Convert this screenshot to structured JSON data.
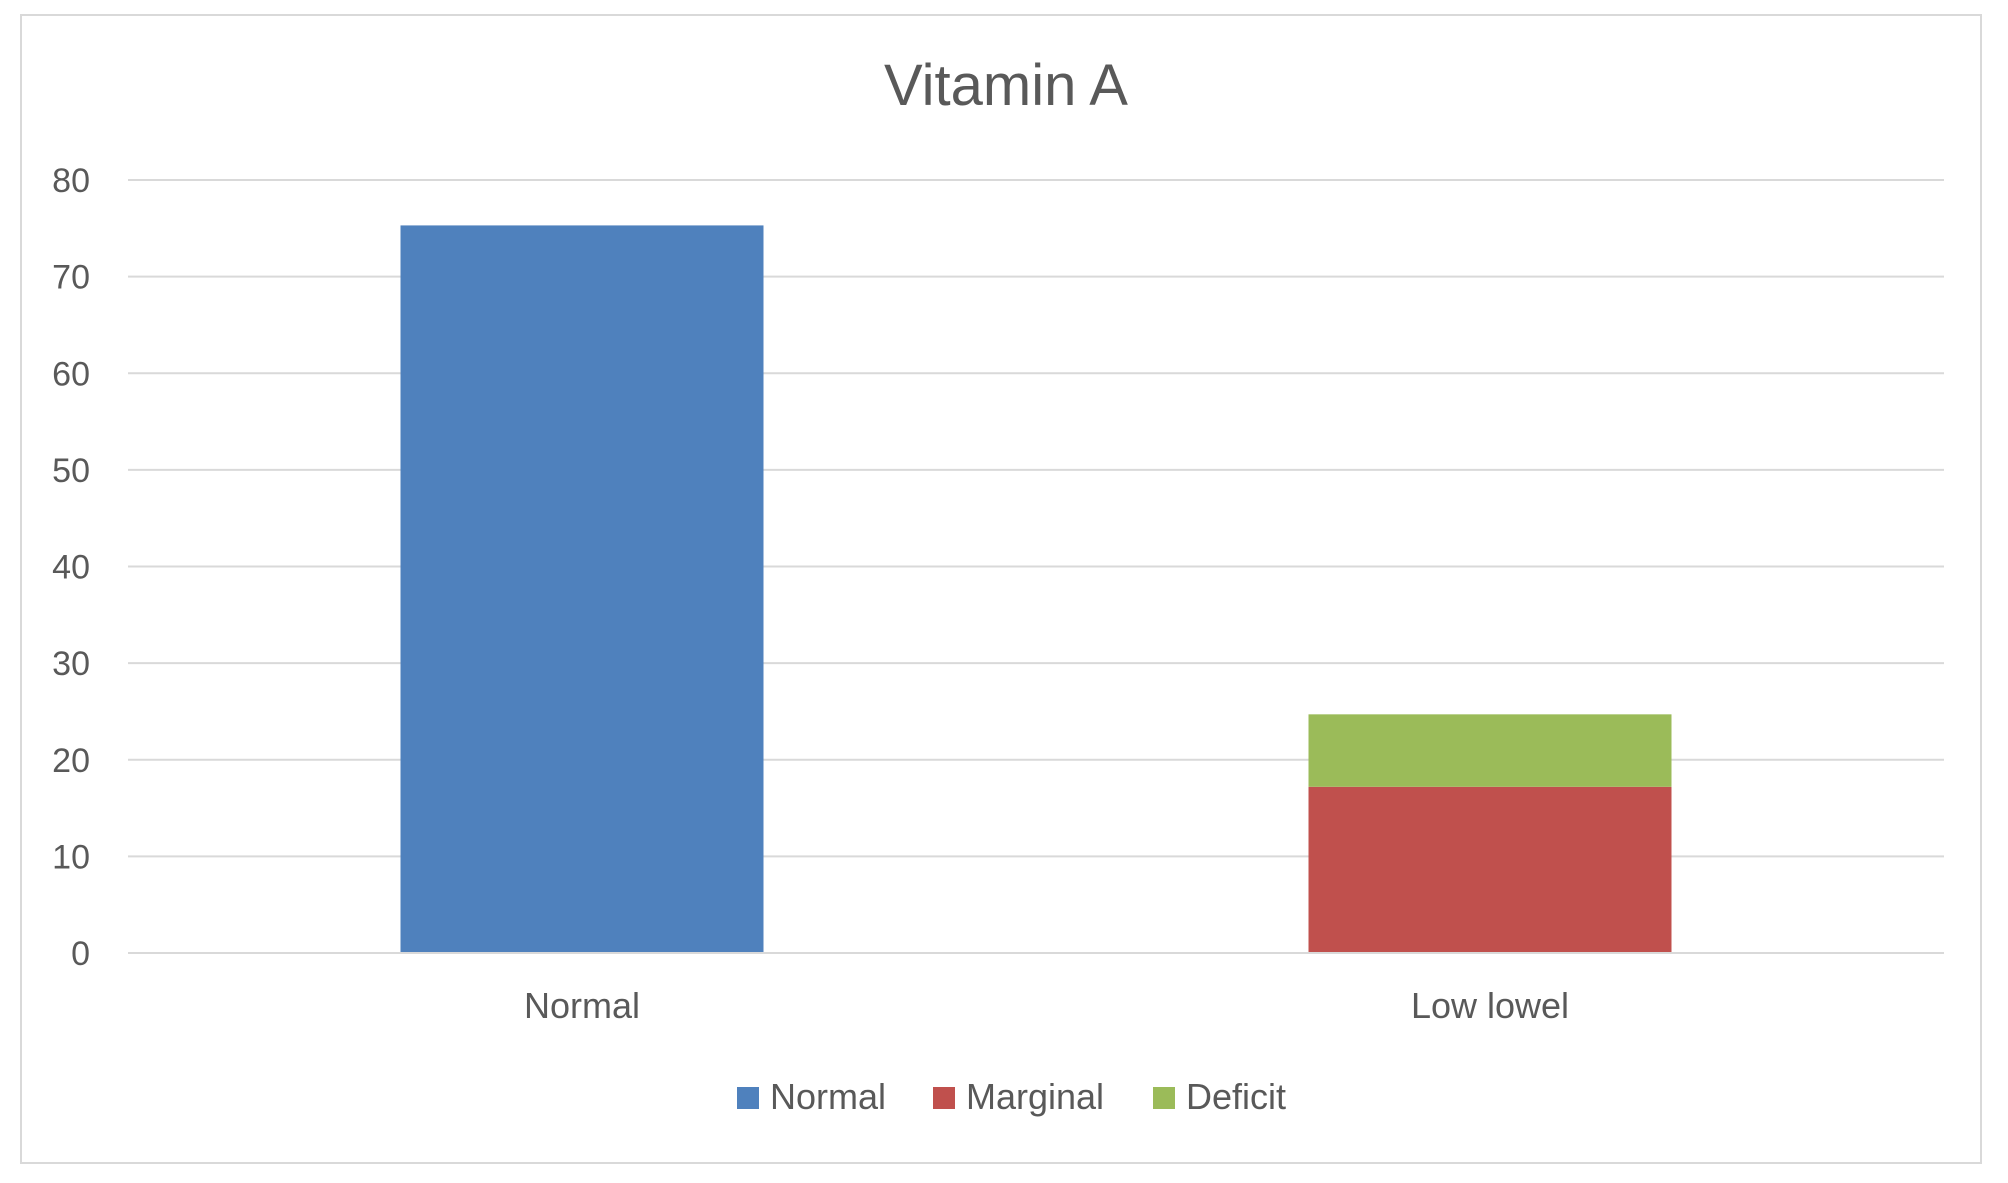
{
  "chart_data": {
    "type": "bar",
    "stacked": true,
    "title": "Vitamin A",
    "xlabel": "",
    "ylabel": "",
    "categories": [
      "Normal",
      "Low lowel"
    ],
    "series": [
      {
        "name": "Normal",
        "color": "#4f81bd",
        "values": [
          75.3,
          0
        ]
      },
      {
        "name": "Marginal",
        "color": "#c0504d",
        "values": [
          0,
          17.2
        ]
      },
      {
        "name": "Deficit",
        "color": "#9bbb59",
        "values": [
          0,
          7.5
        ]
      }
    ],
    "ylim": [
      0,
      80
    ],
    "yticks": [
      0,
      10,
      20,
      30,
      40,
      50,
      60,
      70,
      80
    ],
    "grid": true,
    "legend_position": "bottom"
  }
}
